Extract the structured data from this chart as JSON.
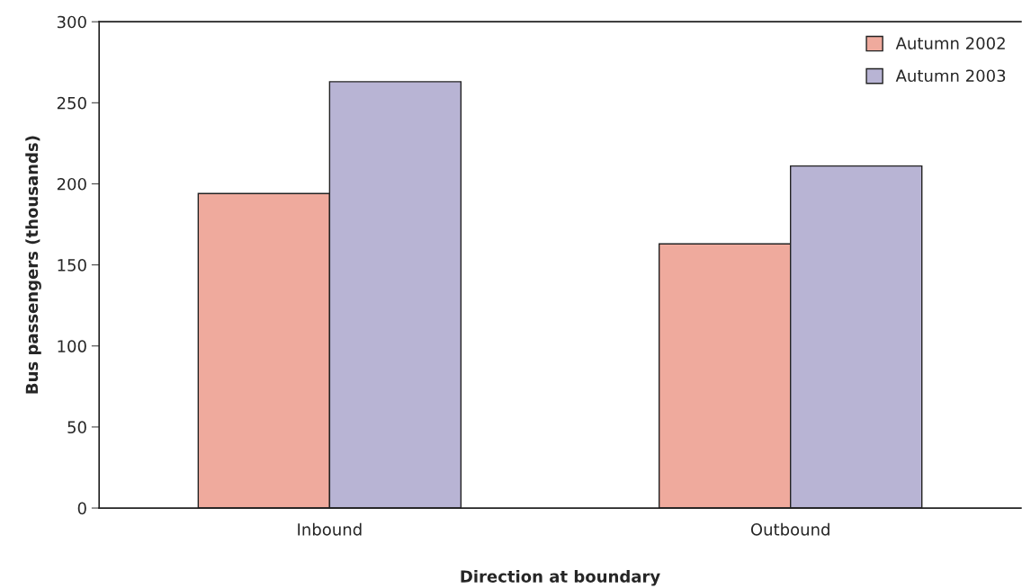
{
  "chart_data": {
    "type": "bar",
    "xlabel": "Direction at boundary",
    "ylabel": "Bus passengers (thousands)",
    "categories": [
      "Inbound",
      "Outbound"
    ],
    "series": [
      {
        "name": "Autumn 2002",
        "color": "#efaa9d",
        "values": [
          194,
          163
        ]
      },
      {
        "name": "Autumn 2003",
        "color": "#b8b4d4",
        "values": [
          263,
          211
        ]
      }
    ],
    "ylim": [
      0,
      300
    ],
    "yticks": [
      0,
      50,
      100,
      150,
      200,
      250,
      300
    ],
    "grid": false,
    "legend": "top right"
  }
}
